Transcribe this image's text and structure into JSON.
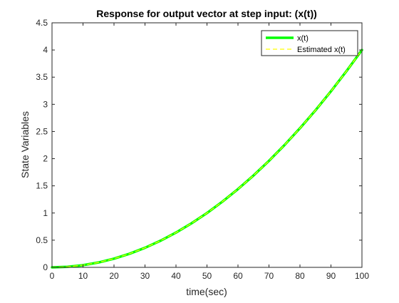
{
  "chart_data": {
    "type": "line",
    "title": "Response for output vector at step input: (x(t))",
    "xlabel": "time(sec)",
    "ylabel": "State Variables",
    "xlim": [
      0,
      100
    ],
    "ylim": [
      0,
      4.5
    ],
    "xticks": [
      0,
      10,
      20,
      30,
      40,
      50,
      60,
      70,
      80,
      90,
      100
    ],
    "yticks": [
      0,
      0.5,
      1,
      1.5,
      2,
      2.5,
      3,
      3.5,
      4,
      4.5
    ],
    "xtick_labels": [
      "0",
      "10",
      "20",
      "30",
      "40",
      "50",
      "60",
      "70",
      "80",
      "90",
      "100"
    ],
    "ytick_labels": [
      "0",
      "0.5",
      "1",
      "1.5",
      "2",
      "2.5",
      "3",
      "3.5",
      "4",
      "4.5"
    ],
    "grid": false,
    "legend_position": "top-right",
    "x": [
      0,
      5,
      10,
      15,
      20,
      25,
      30,
      35,
      40,
      45,
      50,
      55,
      60,
      65,
      70,
      75,
      80,
      85,
      90,
      95,
      100
    ],
    "series": [
      {
        "name": "x(t)",
        "color": "#00ff00",
        "style": "solid-thick",
        "values": [
          0,
          0.01,
          0.04,
          0.09,
          0.16,
          0.25,
          0.36,
          0.49,
          0.64,
          0.81,
          1.0,
          1.21,
          1.44,
          1.69,
          1.96,
          2.25,
          2.56,
          2.89,
          3.24,
          3.61,
          4.0
        ]
      },
      {
        "name": "Estimated x(t)",
        "color": "#ffff00",
        "style": "dashed",
        "values": [
          0,
          0.01,
          0.04,
          0.09,
          0.16,
          0.25,
          0.36,
          0.49,
          0.64,
          0.81,
          1.0,
          1.21,
          1.44,
          1.69,
          1.96,
          2.25,
          2.56,
          2.89,
          3.24,
          3.61,
          4.0
        ]
      }
    ]
  }
}
